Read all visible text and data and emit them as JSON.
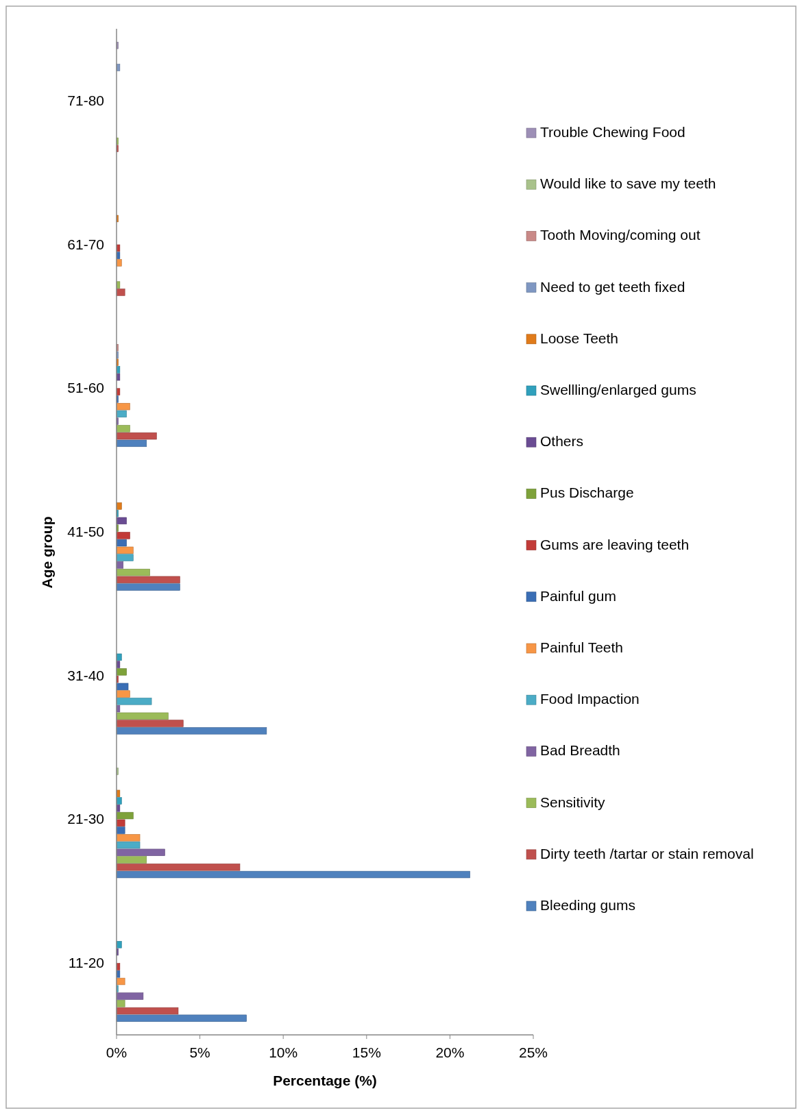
{
  "chart_data": {
    "type": "bar",
    "orientation": "horizontal",
    "xlabel": "Percentage (%)",
    "ylabel": "Age group",
    "categories": [
      "71-80",
      "61-70",
      "51-60",
      "41-50",
      "31-40",
      "21-30",
      "11-20"
    ],
    "xlim": [
      0,
      25
    ],
    "xticks": [
      {
        "value": 0,
        "label": "0%"
      },
      {
        "value": 5,
        "label": "5%"
      },
      {
        "value": 10,
        "label": "10%"
      },
      {
        "value": 15,
        "label": "15%"
      },
      {
        "value": 20,
        "label": "20%"
      },
      {
        "value": 25,
        "label": "25%"
      }
    ],
    "grid": false,
    "legend": "right",
    "series": [
      {
        "name": "Bleeding gums",
        "color": "#4f81bd",
        "values": [
          0,
          0,
          1.8,
          3.8,
          9.0,
          21.2,
          7.8
        ]
      },
      {
        "name": "Dirty teeth /tartar or stain removal",
        "color": "#c0504d",
        "values": [
          0.1,
          0.5,
          2.4,
          3.8,
          4.0,
          7.4,
          3.7
        ]
      },
      {
        "name": "Sensitivity",
        "color": "#9bbb59",
        "values": [
          0.1,
          0.2,
          0.8,
          2.0,
          3.1,
          1.8,
          0.5
        ]
      },
      {
        "name": "Bad Breadth",
        "color": "#8064a2",
        "values": [
          0,
          0,
          0.1,
          0.4,
          0.2,
          2.9,
          1.6
        ]
      },
      {
        "name": "Food Impaction",
        "color": "#4bacc6",
        "values": [
          0,
          0,
          0.6,
          1.0,
          2.1,
          1.4,
          0.1
        ]
      },
      {
        "name": "Painful Teeth",
        "color": "#f79646",
        "values": [
          0,
          0.3,
          0.8,
          1.0,
          0.8,
          1.4,
          0.5
        ]
      },
      {
        "name": "Painful gum",
        "color": "#3a6eb5",
        "values": [
          0,
          0.2,
          0.1,
          0.6,
          0.7,
          0.5,
          0.2
        ]
      },
      {
        "name": "Gums are leaving teeth",
        "color": "#c23b38",
        "values": [
          0,
          0.2,
          0.2,
          0.8,
          0.1,
          0.5,
          0.2
        ]
      },
      {
        "name": "Pus Discharge",
        "color": "#7ea23a",
        "values": [
          0,
          0,
          0,
          0.1,
          0.6,
          1.0,
          0
        ]
      },
      {
        "name": "Others",
        "color": "#6a4c93",
        "values": [
          0,
          0,
          0.2,
          0.6,
          0.2,
          0.2,
          0.1
        ]
      },
      {
        "name": "Swellling/enlarged gums",
        "color": "#30a0bc",
        "values": [
          0,
          0,
          0.2,
          0.1,
          0.3,
          0.3,
          0.3
        ]
      },
      {
        "name": "Loose Teeth",
        "color": "#e07b1a",
        "values": [
          0,
          0.1,
          0.1,
          0.3,
          0,
          0.2,
          0
        ]
      },
      {
        "name": "Need to get teeth fixed",
        "color": "#7f97c2",
        "values": [
          0.2,
          0,
          0.1,
          0,
          0,
          0,
          0
        ]
      },
      {
        "name": "Tooth Moving/coming out",
        "color": "#c98987",
        "values": [
          0,
          0,
          0.1,
          0,
          0,
          0,
          0
        ]
      },
      {
        "name": "Would like to save my teeth",
        "color": "#a9c28b",
        "values": [
          0,
          0,
          0,
          0,
          0,
          0.1,
          0
        ]
      },
      {
        "name": "Trouble Chewing Food",
        "color": "#9d8fb6",
        "values": [
          0.1,
          0,
          0,
          0,
          0,
          0,
          0
        ]
      }
    ]
  }
}
